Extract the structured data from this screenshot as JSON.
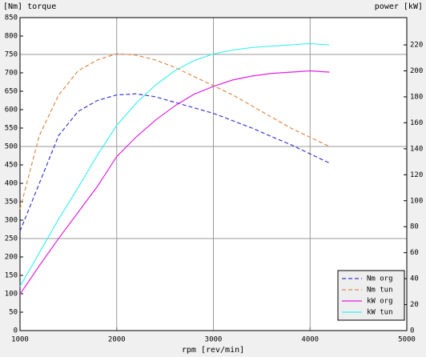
{
  "chart_data": {
    "type": "line",
    "y_label": "[Nm] torque",
    "y2_label": "power [kW]",
    "x_label": "rpm [rev/min]",
    "x": [
      1000,
      1200,
      1400,
      1600,
      1800,
      2000,
      2200,
      2400,
      2600,
      2800,
      3000,
      3200,
      3400,
      3600,
      3800,
      4000,
      4200
    ],
    "series": [
      {
        "name": "Nm org",
        "color": "#3a3ad0",
        "style": "dashed",
        "values": [
          270,
          400,
          530,
          595,
          625,
          640,
          643,
          635,
          620,
          605,
          590,
          570,
          550,
          527,
          505,
          480,
          455
        ]
      },
      {
        "name": "Nm tun",
        "color": "#e08a4a",
        "style": "dashed",
        "values": [
          330,
          530,
          640,
          705,
          735,
          752,
          748,
          735,
          715,
          690,
          665,
          640,
          610,
          580,
          550,
          525,
          500
        ]
      },
      {
        "name": "kW org",
        "color": "#e020e0",
        "style": "solid",
        "axis": "y2",
        "values": [
          28,
          50,
          71,
          91,
          111,
          134,
          149,
          162,
          173,
          182,
          188,
          193,
          196,
          198,
          199,
          200,
          199
        ]
      },
      {
        "name": "kW tun",
        "color": "#40f0f0",
        "style": "solid",
        "axis": "y2",
        "values": [
          34,
          60,
          86,
          110,
          135,
          158,
          175,
          189,
          200,
          208,
          213,
          216,
          218,
          219,
          220,
          221,
          220
        ]
      }
    ],
    "xlim": [
      1000,
      5000
    ],
    "xticks": [
      1000,
      2000,
      3000,
      4000,
      5000
    ],
    "ylim": [
      0,
      850
    ],
    "yticks": [
      0,
      50,
      100,
      150,
      200,
      250,
      300,
      350,
      400,
      450,
      500,
      550,
      600,
      650,
      700,
      750,
      800,
      850
    ],
    "y2lim": [
      0,
      241
    ],
    "y2ticks": [
      0,
      20,
      40,
      60,
      80,
      100,
      120,
      140,
      160,
      180,
      200,
      220
    ],
    "grid": true,
    "legend": "lower right"
  }
}
